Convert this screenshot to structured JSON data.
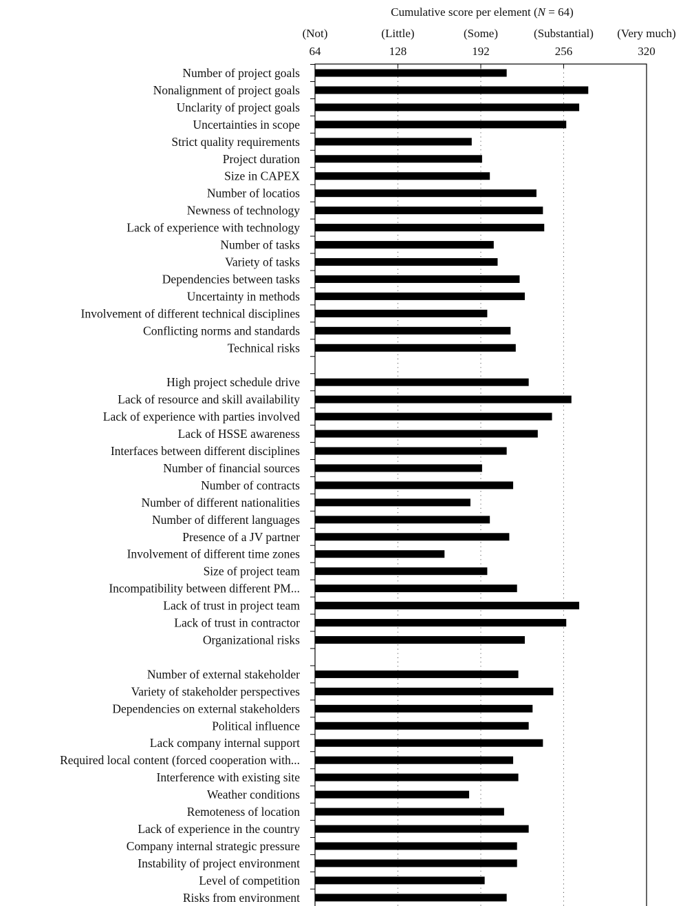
{
  "chart_data": {
    "type": "bar",
    "orientation": "horizontal",
    "title": "",
    "xlabel": "Cumulative score per element (N = 64)",
    "xlabel_parts": [
      "Cumulative score per element (",
      "N",
      " = 64)"
    ],
    "xlim": [
      64,
      320
    ],
    "ticks": [
      {
        "value": 64,
        "word": "(Not)"
      },
      {
        "value": 128,
        "word": "(Little)"
      },
      {
        "value": 192,
        "word": "(Some)"
      },
      {
        "value": 256,
        "word": "(Substantial)"
      },
      {
        "value": 320,
        "word": "(Very much)"
      }
    ],
    "gridlines": [
      128,
      192,
      256
    ],
    "categories": [
      "Number of project goals",
      "Nonalignment of project goals",
      "Unclarity of project goals",
      "Uncertainties in scope",
      "Strict quality requirements",
      "Project duration",
      "Size in CAPEX",
      "Number of locatios",
      "Newness of technology",
      "Lack of experience with technology",
      "Number of tasks",
      "Variety of tasks",
      "Dependencies between tasks",
      "Uncertainty in methods",
      "Involvement of different technical disciplines",
      "Conflicting norms and standards",
      "Technical risks",
      "",
      "High project schedule drive",
      "Lack of resource and skill availability",
      "Lack of experience with parties involved",
      "Lack of HSSE awareness",
      "Interfaces between different disciplines",
      "Number of financial sources",
      "Number of contracts",
      "Number of different nationalities",
      "Number of different languages",
      "Presence of a JV partner",
      "Involvement of different time zones",
      "Size of project team",
      "Incompatibility between different PM...",
      "Lack of trust in project team",
      "Lack of trust in contractor",
      "Organizational risks",
      "",
      "Number of external stakeholder",
      "Variety of stakeholder perspectives",
      "Dependencies on external stakeholders",
      "Political influence",
      "Lack company internal support",
      "Required local content (forced cooperation with...",
      "Interference with existing site",
      "Weather conditions",
      "Remoteness of location",
      "Lack of experience in the country",
      "Company internal strategic pressure",
      "Instability of project environment",
      "Level of competition",
      "Risks from environment"
    ],
    "values": [
      212,
      275,
      268,
      258,
      185,
      193,
      199,
      235,
      240,
      241,
      202,
      205,
      222,
      226,
      197,
      215,
      219,
      null,
      229,
      262,
      247,
      236,
      212,
      193,
      217,
      184,
      199,
      214,
      164,
      197,
      220,
      268,
      258,
      226,
      null,
      221,
      248,
      232,
      229,
      240,
      217,
      221,
      183,
      210,
      229,
      220,
      220,
      195,
      212
    ],
    "grid": true,
    "legend": "none"
  }
}
